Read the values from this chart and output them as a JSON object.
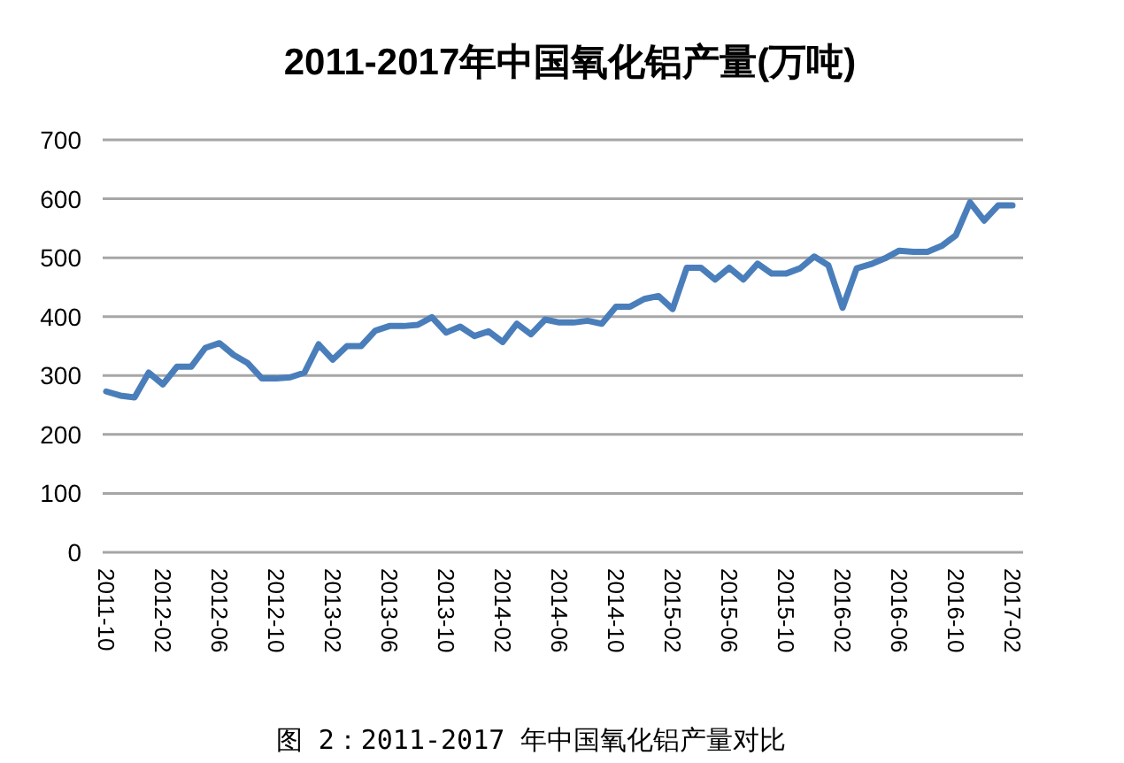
{
  "chart_data": {
    "type": "line",
    "title": "2011-2017年中国氧化铝产量(万吨)",
    "categories": [
      "2011-10",
      null,
      null,
      null,
      "2012-02",
      null,
      null,
      null,
      "2012-06",
      null,
      null,
      null,
      "2012-10",
      null,
      null,
      null,
      "2013-02",
      null,
      null,
      null,
      "2013-06",
      null,
      null,
      null,
      "2013-10",
      null,
      null,
      null,
      "2014-02",
      null,
      null,
      null,
      "2014-06",
      null,
      null,
      null,
      "2014-10",
      null,
      null,
      null,
      "2015-02",
      null,
      null,
      null,
      "2015-06",
      null,
      null,
      null,
      "2015-10",
      null,
      null,
      null,
      "2016-02",
      null,
      null,
      null,
      "2016-06",
      null,
      null,
      null,
      "2016-10",
      null,
      null,
      null,
      "2017-02"
    ],
    "series": [
      {
        "color": "#4a7ebb",
        "values": [
          273,
          266,
          263,
          305,
          285,
          315,
          315,
          347,
          355,
          335,
          321,
          295,
          295,
          297,
          305,
          353,
          327,
          350,
          350,
          376,
          384,
          384,
          386,
          399,
          373,
          383,
          367,
          375,
          357,
          388,
          370,
          395,
          390,
          390,
          393,
          388,
          417,
          417,
          430,
          435,
          413,
          483,
          483,
          463,
          483,
          463,
          490,
          473,
          473,
          482,
          502,
          487,
          415,
          482,
          489,
          499,
          512,
          510,
          510,
          520,
          538,
          594,
          563,
          589,
          589
        ]
      }
    ],
    "ylim": [
      0,
      700
    ],
    "yticks": [
      0,
      100,
      200,
      300,
      400,
      500,
      600,
      700
    ],
    "grid": "y",
    "marker": "none",
    "line_style": "solid",
    "annotations": [
      "图 2：2011-2017 年中国氧化铝产量对比"
    ]
  }
}
